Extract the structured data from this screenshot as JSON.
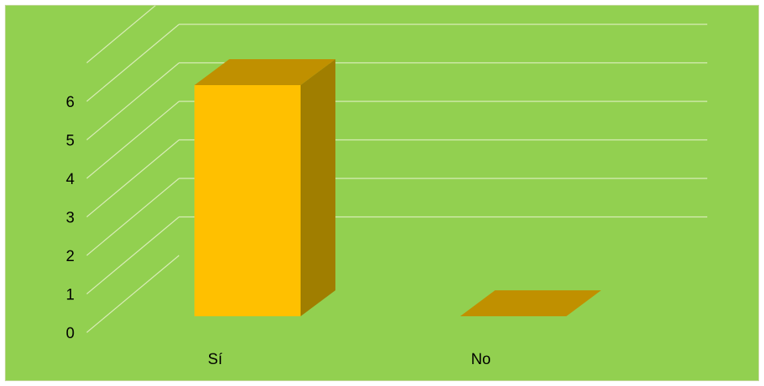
{
  "chart_data": {
    "type": "bar",
    "style": "3d-column",
    "categories": [
      "Sí",
      "No"
    ],
    "values": [
      6,
      0
    ],
    "yticks": [
      "0",
      "1",
      "2",
      "3",
      "4",
      "5",
      "6"
    ],
    "ylim": [
      0,
      6
    ],
    "grid": true,
    "legend": "none",
    "colors": {
      "background": "#92d050",
      "gridline": "#d9ecb8",
      "bar_front": "#ffc000",
      "bar_top": "#c09000",
      "bar_side": "#a07e00"
    }
  }
}
